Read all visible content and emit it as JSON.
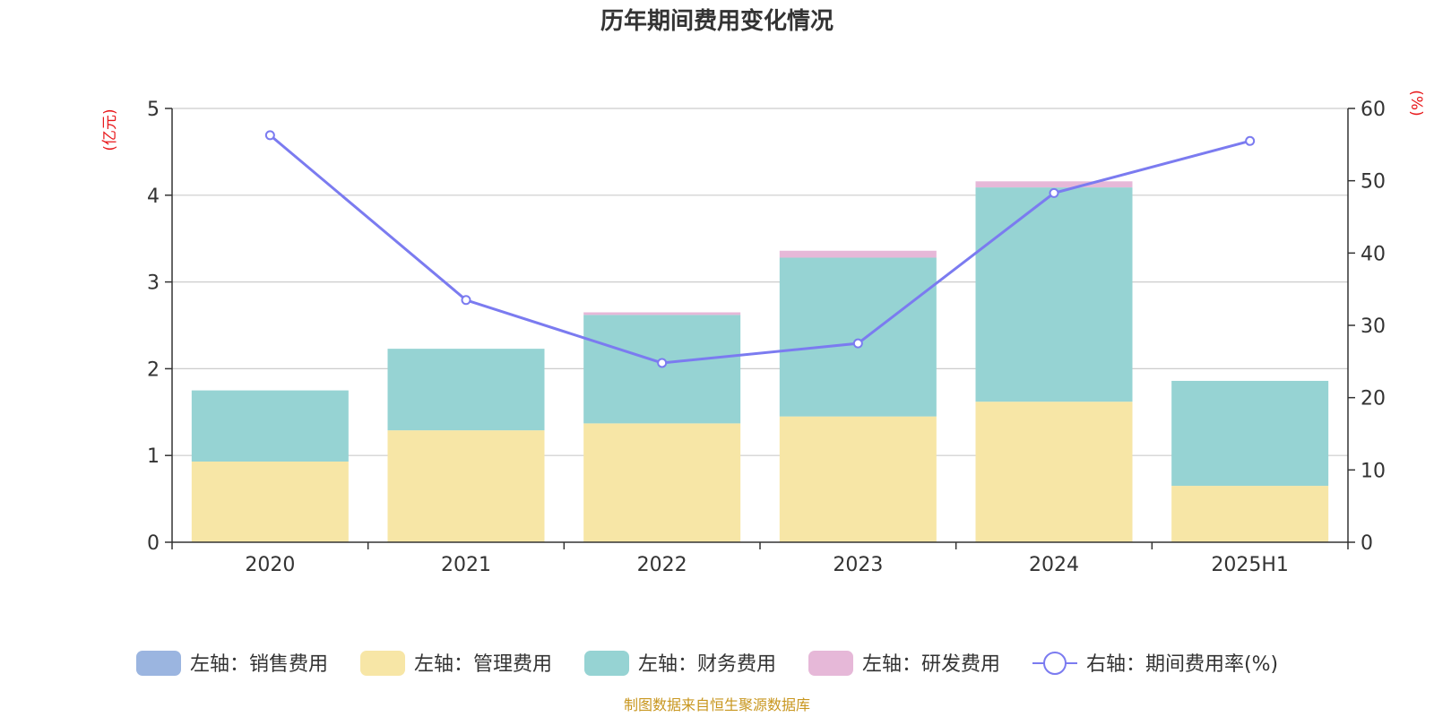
{
  "chart_data": {
    "type": "bar",
    "title": "历年期间费用变化情况",
    "categories": [
      "2020",
      "2021",
      "2022",
      "2023",
      "2024",
      "2025H1"
    ],
    "left_axis": {
      "unit": "(亿元)",
      "ylim": [
        0,
        5
      ],
      "ticks": [
        0,
        1,
        2,
        3,
        4,
        5
      ]
    },
    "right_axis": {
      "unit": "(%)",
      "ylim": [
        0,
        60
      ],
      "ticks": [
        0,
        10,
        20,
        30,
        40,
        50,
        60
      ]
    },
    "series": [
      {
        "name": "左轴：销售费用",
        "type": "bar",
        "axis": "left",
        "color": "#9bb5e0",
        "values": [
          0,
          0,
          0,
          0,
          0,
          0
        ]
      },
      {
        "name": "左轴：管理费用",
        "type": "bar",
        "axis": "left",
        "color": "#f7e6a6",
        "values": [
          0.93,
          1.29,
          1.37,
          1.45,
          1.62,
          0.65
        ]
      },
      {
        "name": "左轴：财务费用",
        "type": "bar",
        "axis": "left",
        "color": "#96d3d3",
        "values": [
          0.82,
          0.94,
          1.25,
          1.83,
          2.47,
          1.21
        ]
      },
      {
        "name": "左轴：研发费用",
        "type": "bar",
        "axis": "left",
        "color": "#e6b8d8",
        "values": [
          0,
          0,
          0.03,
          0.08,
          0.07,
          0
        ]
      },
      {
        "name": "右轴：期间费用率(%)",
        "type": "line",
        "axis": "right",
        "color": "#7b7bf0",
        "values": [
          56.3,
          33.5,
          24.8,
          27.5,
          48.3,
          55.5
        ]
      }
    ],
    "grid": true,
    "legend_position": "bottom"
  },
  "source_note": "制图数据来自恒生聚源数据库"
}
